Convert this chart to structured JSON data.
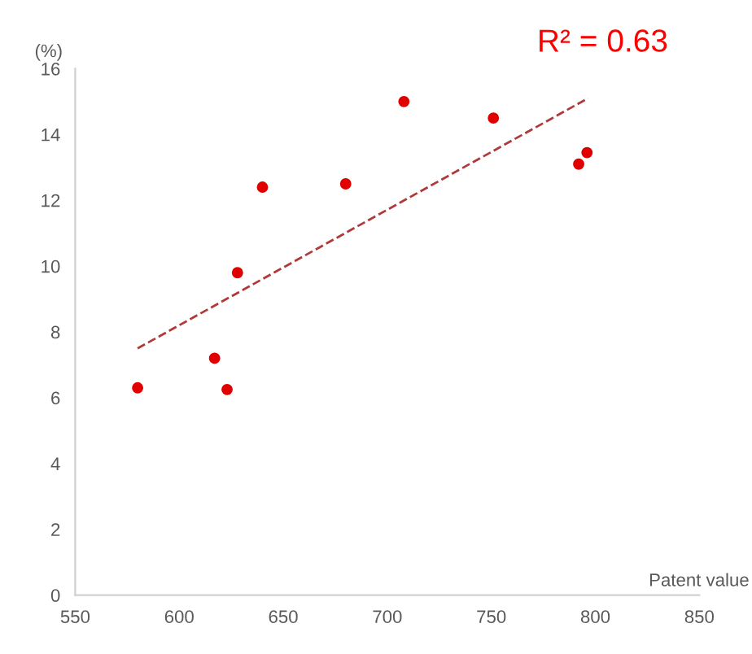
{
  "chart_data": {
    "type": "scatter",
    "ylabel": "(%)",
    "xlabel": "Patent value",
    "annotations": [
      "R² = 0.63"
    ],
    "series": [
      {
        "color": "#e00000",
        "marker": "circle",
        "x": [
          580,
          617,
          623,
          628,
          640,
          680,
          708,
          751,
          792,
          796
        ],
        "values": [
          6.3,
          7.2,
          6.25,
          9.8,
          12.4,
          12.5,
          15.0,
          14.5,
          13.1,
          13.45
        ]
      },
      {
        "type": "line",
        "color": "#b03a3a",
        "line_style": "dashed",
        "x": [
          580,
          796.5
        ],
        "values": [
          7.5,
          15.1
        ]
      }
    ],
    "xlim": [
      550,
      850
    ],
    "xticks": [
      550,
      600,
      650,
      700,
      750,
      800,
      850
    ],
    "ylim": [
      0,
      16
    ],
    "yticks": [
      0,
      2,
      4,
      6,
      8,
      10,
      12,
      14,
      16
    ],
    "grid": false
  }
}
